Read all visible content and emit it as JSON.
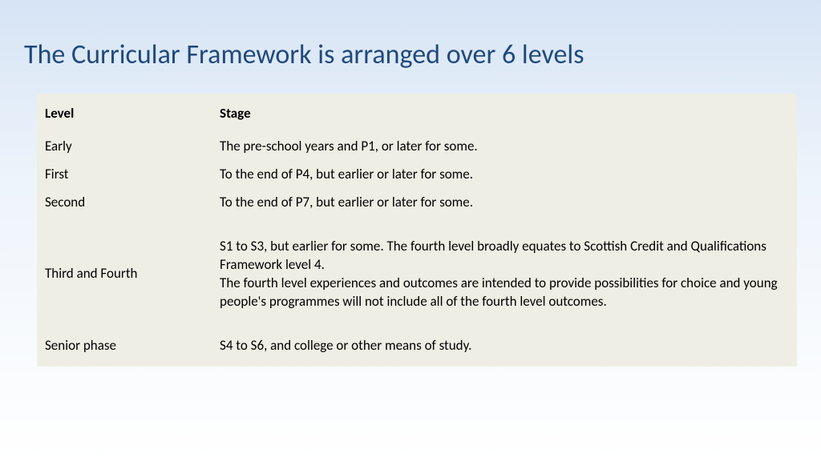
{
  "title": "The Curricular Framework is arranged over 6 levels",
  "colors": {
    "title_color": "#1f497d",
    "table_bg": "#eeeee4",
    "bg_gradient_top": "#d6e4f5",
    "bg_gradient_mid": "#eef4fb",
    "bg_gradient_bottom": "#ffffff",
    "text_color": "#000000"
  },
  "typography": {
    "title_fontsize": 34,
    "header_fontsize": 17,
    "cell_fontsize": 17,
    "font_family": "Calibri"
  },
  "table": {
    "type": "table",
    "columns": [
      "Level",
      "Stage"
    ],
    "column_widths_pct": [
      23,
      77
    ],
    "rows": [
      {
        "level": "Early",
        "stage": "The pre-school years and P1, or later for some."
      },
      {
        "level": "First",
        "stage": "To the end of P4, but earlier or later for some."
      },
      {
        "level": "Second",
        "stage": "To the end of P7, but earlier or later for some."
      },
      {
        "level": "Third and Fourth",
        "stage": "S1 to S3, but earlier for some. The fourth level broadly equates to Scottish Credit and Qualifications Framework level 4.\nThe fourth level experiences and outcomes are intended to provide possibilities for choice and young people's programmes will not include all of the fourth level outcomes."
      },
      {
        "level": "Senior phase",
        "stage": "S4 to S6, and college or other means of study."
      }
    ]
  }
}
